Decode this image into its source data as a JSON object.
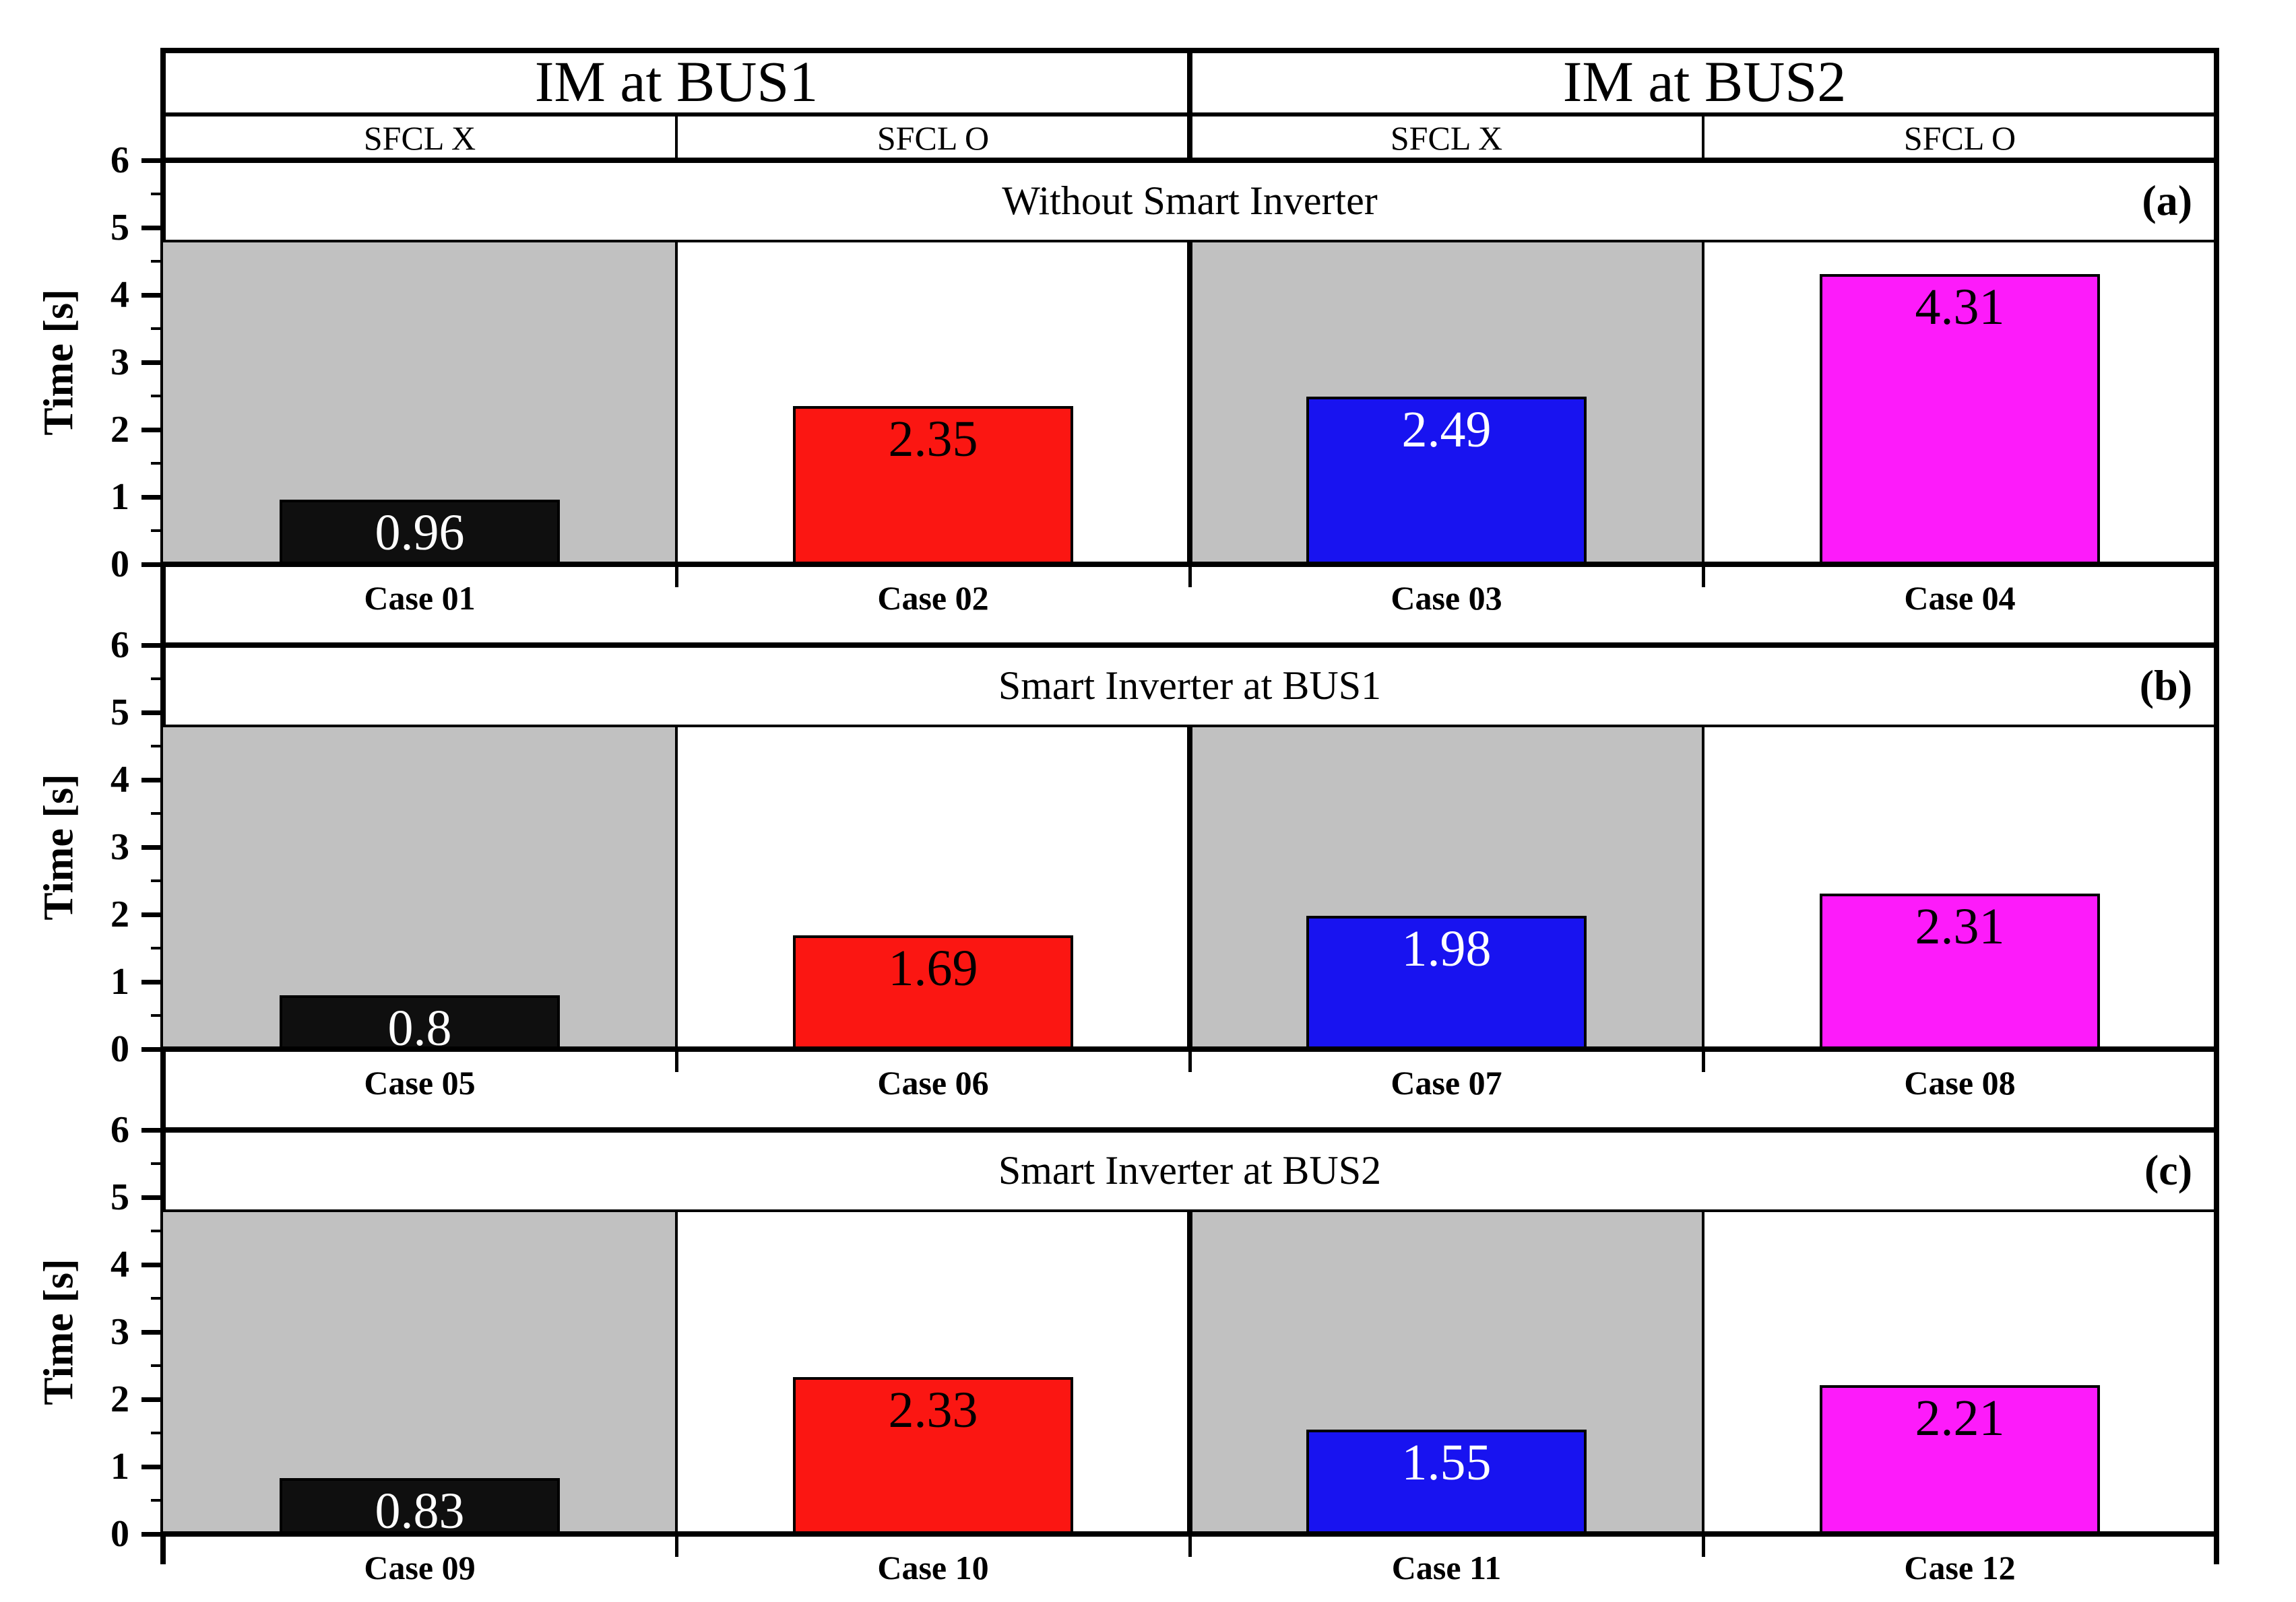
{
  "chart_data": {
    "type": "bar",
    "title": "",
    "ylabel": "Time [s]",
    "ylim": [
      0,
      6
    ],
    "yticks": [
      0,
      1,
      2,
      3,
      4,
      5,
      6
    ],
    "minor_tick_step": 0.5,
    "grid": false,
    "legend_position": "none",
    "shaded_column_max": 4.8,
    "column_group_header": [
      "IM at BUS1",
      "IM at BUS2"
    ],
    "column_subheader": [
      "SFCL X",
      "SFCL O",
      "SFCL X",
      "SFCL O"
    ],
    "colors": {
      "shaded_column": "#c1c1c1",
      "axis": "#000000",
      "background": "#ffffff",
      "black_bar": "#0f0f0f",
      "red_bar": "#fb1612",
      "blue_bar": "#1813f0",
      "magenta_bar": "#fd1bfa"
    },
    "panels": [
      {
        "tag": "(a)",
        "title": "Without Smart Inverter",
        "categories": [
          "Case 01",
          "Case 02",
          "Case 03",
          "Case 04"
        ],
        "bars": [
          {
            "category": "Case 01",
            "value": 0.96,
            "label": "0.96",
            "color": "#0f0f0f",
            "label_color": "#ffffff",
            "shaded_background": true
          },
          {
            "category": "Case 02",
            "value": 2.35,
            "label": "2.35",
            "color": "#fb1612",
            "label_color": "#000000",
            "shaded_background": false
          },
          {
            "category": "Case 03",
            "value": 2.49,
            "label": "2.49",
            "color": "#1813f0",
            "label_color": "#ffffff",
            "shaded_background": true
          },
          {
            "category": "Case 04",
            "value": 4.31,
            "label": "4.31",
            "color": "#fd1bfa",
            "label_color": "#000000",
            "shaded_background": false
          }
        ]
      },
      {
        "tag": "(b)",
        "title": "Smart Inverter at BUS1",
        "categories": [
          "Case 05",
          "Case 06",
          "Case 07",
          "Case 08"
        ],
        "bars": [
          {
            "category": "Case 05",
            "value": 0.8,
            "label": "0.8",
            "color": "#0f0f0f",
            "label_color": "#ffffff",
            "shaded_background": true
          },
          {
            "category": "Case 06",
            "value": 1.69,
            "label": "1.69",
            "color": "#fb1612",
            "label_color": "#000000",
            "shaded_background": false
          },
          {
            "category": "Case 07",
            "value": 1.98,
            "label": "1.98",
            "color": "#1813f0",
            "label_color": "#ffffff",
            "shaded_background": true
          },
          {
            "category": "Case 08",
            "value": 2.31,
            "label": "2.31",
            "color": "#fd1bfa",
            "label_color": "#000000",
            "shaded_background": false
          }
        ]
      },
      {
        "tag": "(c)",
        "title": "Smart Inverter at BUS2",
        "categories": [
          "Case 09",
          "Case 10",
          "Case 11",
          "Case 12"
        ],
        "bars": [
          {
            "category": "Case 09",
            "value": 0.83,
            "label": "0.83",
            "color": "#0f0f0f",
            "label_color": "#ffffff",
            "shaded_background": true
          },
          {
            "category": "Case 10",
            "value": 2.33,
            "label": "2.33",
            "color": "#fb1612",
            "label_color": "#000000",
            "shaded_background": false
          },
          {
            "category": "Case 11",
            "value": 1.55,
            "label": "1.55",
            "color": "#1813f0",
            "label_color": "#ffffff",
            "shaded_background": true
          },
          {
            "category": "Case 12",
            "value": 2.21,
            "label": "2.21",
            "color": "#fd1bfa",
            "label_color": "#000000",
            "shaded_background": false
          }
        ]
      }
    ]
  }
}
